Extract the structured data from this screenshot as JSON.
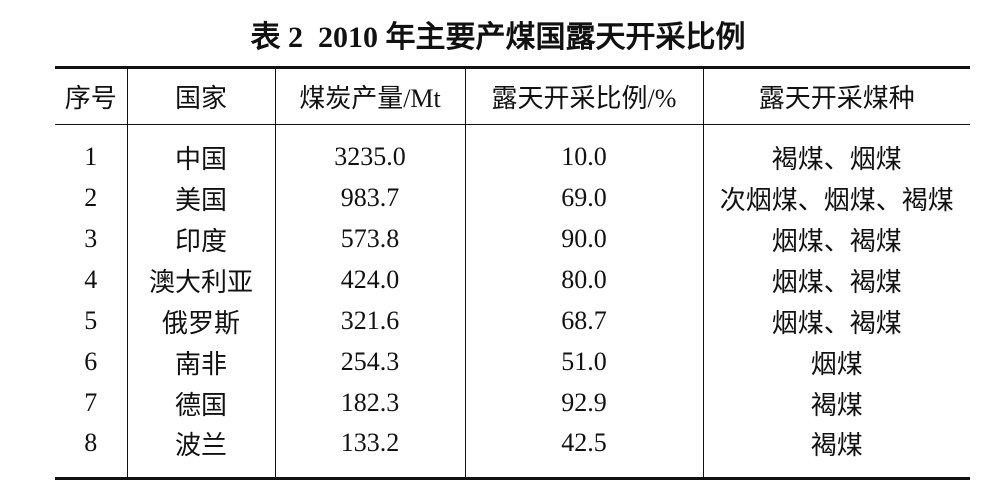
{
  "title": "表 2  2010 年主要产煤国露天开采比例",
  "table": {
    "header": [
      "序号",
      "国家",
      "煤炭产量/Mt",
      "露天开采比例/%",
      "露天开采煤种"
    ],
    "rows": [
      [
        "1",
        "中国",
        "3235.0",
        "10.0",
        "褐煤、烟煤"
      ],
      [
        "2",
        "美国",
        "983.7",
        "69.0",
        "次烟煤、烟煤、褐煤"
      ],
      [
        "3",
        "印度",
        "573.8",
        "90.0",
        "烟煤、褐煤"
      ],
      [
        "4",
        "澳大利亚",
        "424.0",
        "80.0",
        "烟煤、褐煤"
      ],
      [
        "5",
        "俄罗斯",
        "321.6",
        "68.7",
        "烟煤、褐煤"
      ],
      [
        "6",
        "南非",
        "254.3",
        "51.0",
        "烟煤"
      ],
      [
        "7",
        "德国",
        "182.3",
        "92.9",
        "褐煤"
      ],
      [
        "8",
        "波兰",
        "133.2",
        "42.5",
        "褐煤"
      ]
    ]
  }
}
